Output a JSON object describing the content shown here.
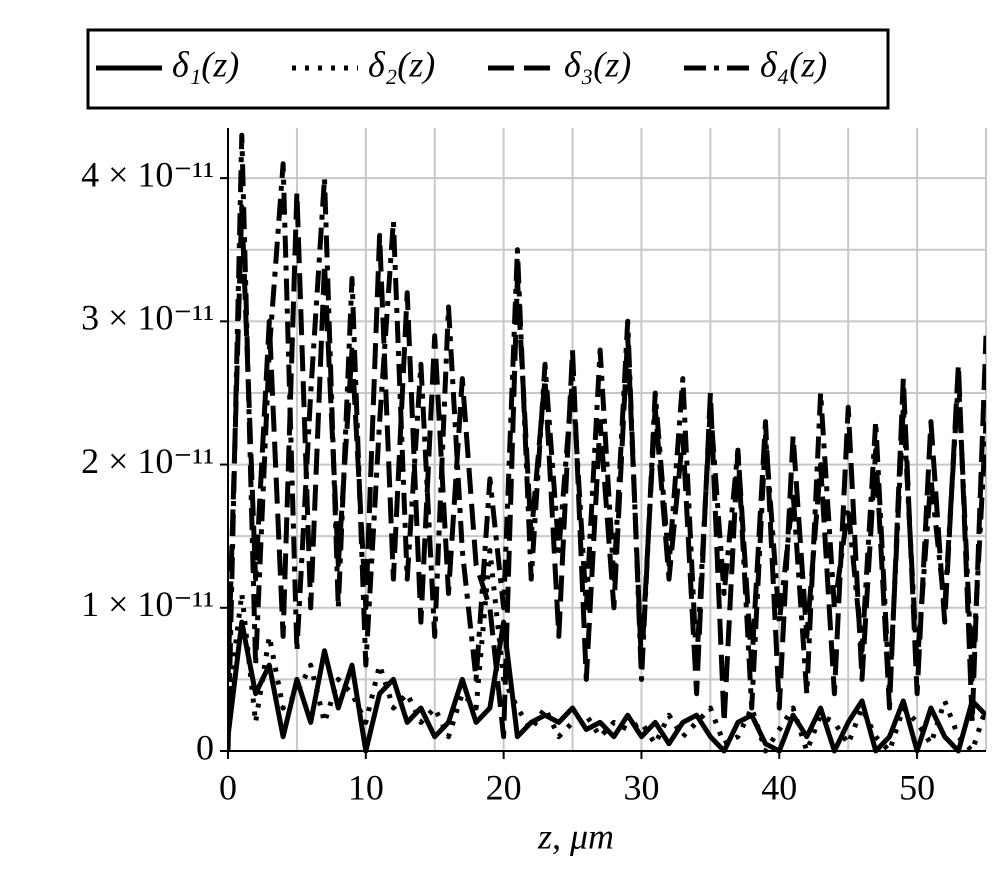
{
  "chart_data": {
    "type": "line",
    "xlabel": "z, μm",
    "x": [
      0,
      1,
      2,
      3,
      4,
      5,
      6,
      7,
      8,
      9,
      10,
      11,
      12,
      13,
      14,
      15,
      16,
      17,
      18,
      19,
      20,
      21,
      22,
      23,
      24,
      25,
      26,
      27,
      28,
      29,
      30,
      31,
      32,
      33,
      34,
      35,
      36,
      37,
      38,
      39,
      40,
      41,
      42,
      43,
      44,
      45,
      46,
      47,
      48,
      49,
      50,
      51,
      52,
      53,
      54,
      55
    ],
    "xlim": [
      0,
      55
    ],
    "xticks": [
      0,
      10,
      20,
      30,
      40,
      50
    ],
    "xgrid": [
      0,
      5,
      10,
      15,
      20,
      25,
      30,
      35,
      40,
      45,
      50,
      55
    ],
    "ylim": [
      0,
      4.35e-11
    ],
    "yticks": [
      {
        "value": 0,
        "label": "0"
      },
      {
        "value": 1e-11,
        "label": "1 × 10⁻¹¹"
      },
      {
        "value": 2e-11,
        "label": "2 × 10⁻¹¹"
      },
      {
        "value": 3e-11,
        "label": "3 × 10⁻¹¹"
      },
      {
        "value": 4e-11,
        "label": "4 × 10⁻¹¹"
      }
    ],
    "ygrid": [
      0,
      5e-12,
      1e-11,
      1.5e-11,
      2e-11,
      2.5e-11,
      3e-11,
      3.5e-11,
      4e-11
    ],
    "grid": true,
    "legend": "top",
    "series": [
      {
        "name": "δ₁(z)",
        "color": "#000000",
        "dash": "solid",
        "values": [
          1e-12,
          9e-12,
          4e-12,
          6e-12,
          1e-12,
          5e-12,
          2e-12,
          7e-12,
          3e-12,
          6e-12,
          0,
          4e-12,
          5e-12,
          2e-12,
          3e-12,
          1e-12,
          2e-12,
          5e-12,
          2e-12,
          3e-12,
          9e-12,
          1e-12,
          2e-12,
          2.5e-12,
          2e-12,
          3e-12,
          1.5e-12,
          2e-12,
          1e-12,
          2.5e-12,
          1e-12,
          2e-12,
          5e-13,
          2e-12,
          2.5e-12,
          1e-12,
          0,
          2e-12,
          2.5e-12,
          5e-13,
          0,
          2.5e-12,
          1e-12,
          3e-12,
          0,
          2e-12,
          3.5e-12,
          0,
          1e-12,
          3.5e-12,
          0,
          3e-12,
          1e-12,
          0,
          3.5e-12,
          2.5e-12
        ]
      },
      {
        "name": "δ₂(z)",
        "color": "#000000",
        "dash": "dotted",
        "values": [
          3e-12,
          1.1e-11,
          2e-12,
          8e-12,
          3e-12,
          4e-12,
          6e-12,
          2e-12,
          5e-12,
          4e-12,
          2e-12,
          6e-12,
          3e-12,
          4e-12,
          2e-12,
          3e-12,
          1e-12,
          4e-12,
          3e-12,
          1.4e-11,
          5e-12,
          3e-12,
          1.5e-12,
          3e-12,
          1e-12,
          2e-12,
          2.5e-12,
          1e-12,
          2e-12,
          1.5e-12,
          2e-12,
          5e-13,
          2.5e-12,
          1e-12,
          2e-12,
          3e-12,
          5e-13,
          1e-12,
          3e-12,
          0,
          1.5e-12,
          3e-12,
          0,
          2.5e-12,
          2e-12,
          5e-13,
          3e-12,
          1e-12,
          0,
          3e-12,
          2e-12,
          5e-13,
          3.5e-12,
          1e-12,
          0,
          3e-12
        ]
      },
      {
        "name": "δ₃(z)",
        "color": "#000000",
        "dash": "dashed",
        "values": [
          5e-12,
          3.8e-11,
          1.2e-11,
          3e-11,
          8e-12,
          3.9e-11,
          1e-11,
          3.4e-11,
          1.3e-11,
          2.8e-11,
          1e-11,
          3.6e-11,
          1.2e-11,
          3.2e-11,
          9e-12,
          2.9e-11,
          1.1e-11,
          2.6e-11,
          1.3e-11,
          1e-11,
          1e-12,
          3.3e-11,
          1.5e-11,
          2.6e-11,
          8e-12,
          2.8e-11,
          5e-12,
          2.3e-11,
          1e-11,
          2.9e-11,
          6e-12,
          2.4e-11,
          1.2e-11,
          2.2e-11,
          4e-12,
          2.5e-11,
          2e-12,
          2.1e-11,
          6e-12,
          2.3e-11,
          3e-12,
          2.2e-11,
          8e-12,
          2e-11,
          4e-12,
          2.4e-11,
          5e-12,
          2.1e-11,
          3e-12,
          2.6e-11,
          4e-12,
          2.3e-11,
          9e-12,
          2.7e-11,
          2e-12,
          2.9e-11
        ]
      },
      {
        "name": "δ₄(z)",
        "color": "#000000",
        "dash": "dashdot",
        "values": [
          0,
          4.3e-11,
          6e-12,
          2.8e-11,
          4.1e-11,
          7e-12,
          2.5e-11,
          4e-11,
          1e-11,
          3.3e-11,
          6e-12,
          2.3e-11,
          3.7e-11,
          1.2e-11,
          2.7e-11,
          8e-12,
          3.1e-11,
          1.4e-11,
          5e-12,
          1.9e-11,
          1e-11,
          3.5e-11,
          1.2e-11,
          2.7e-11,
          1.4e-11,
          2.6e-11,
          1e-11,
          2.8e-11,
          1.2e-11,
          3e-11,
          5e-12,
          2.5e-11,
          1.3e-11,
          2.6e-11,
          6e-12,
          2.4e-11,
          1.1e-11,
          2.1e-11,
          3e-12,
          2.2e-11,
          9e-12,
          1.8e-11,
          4e-12,
          2.5e-11,
          1e-11,
          1.7e-11,
          7e-12,
          2.3e-11,
          4e-12,
          2.4e-11,
          6e-12,
          1.9e-11,
          1e-11,
          2.6e-11,
          5e-12,
          2.3e-11
        ]
      }
    ]
  }
}
